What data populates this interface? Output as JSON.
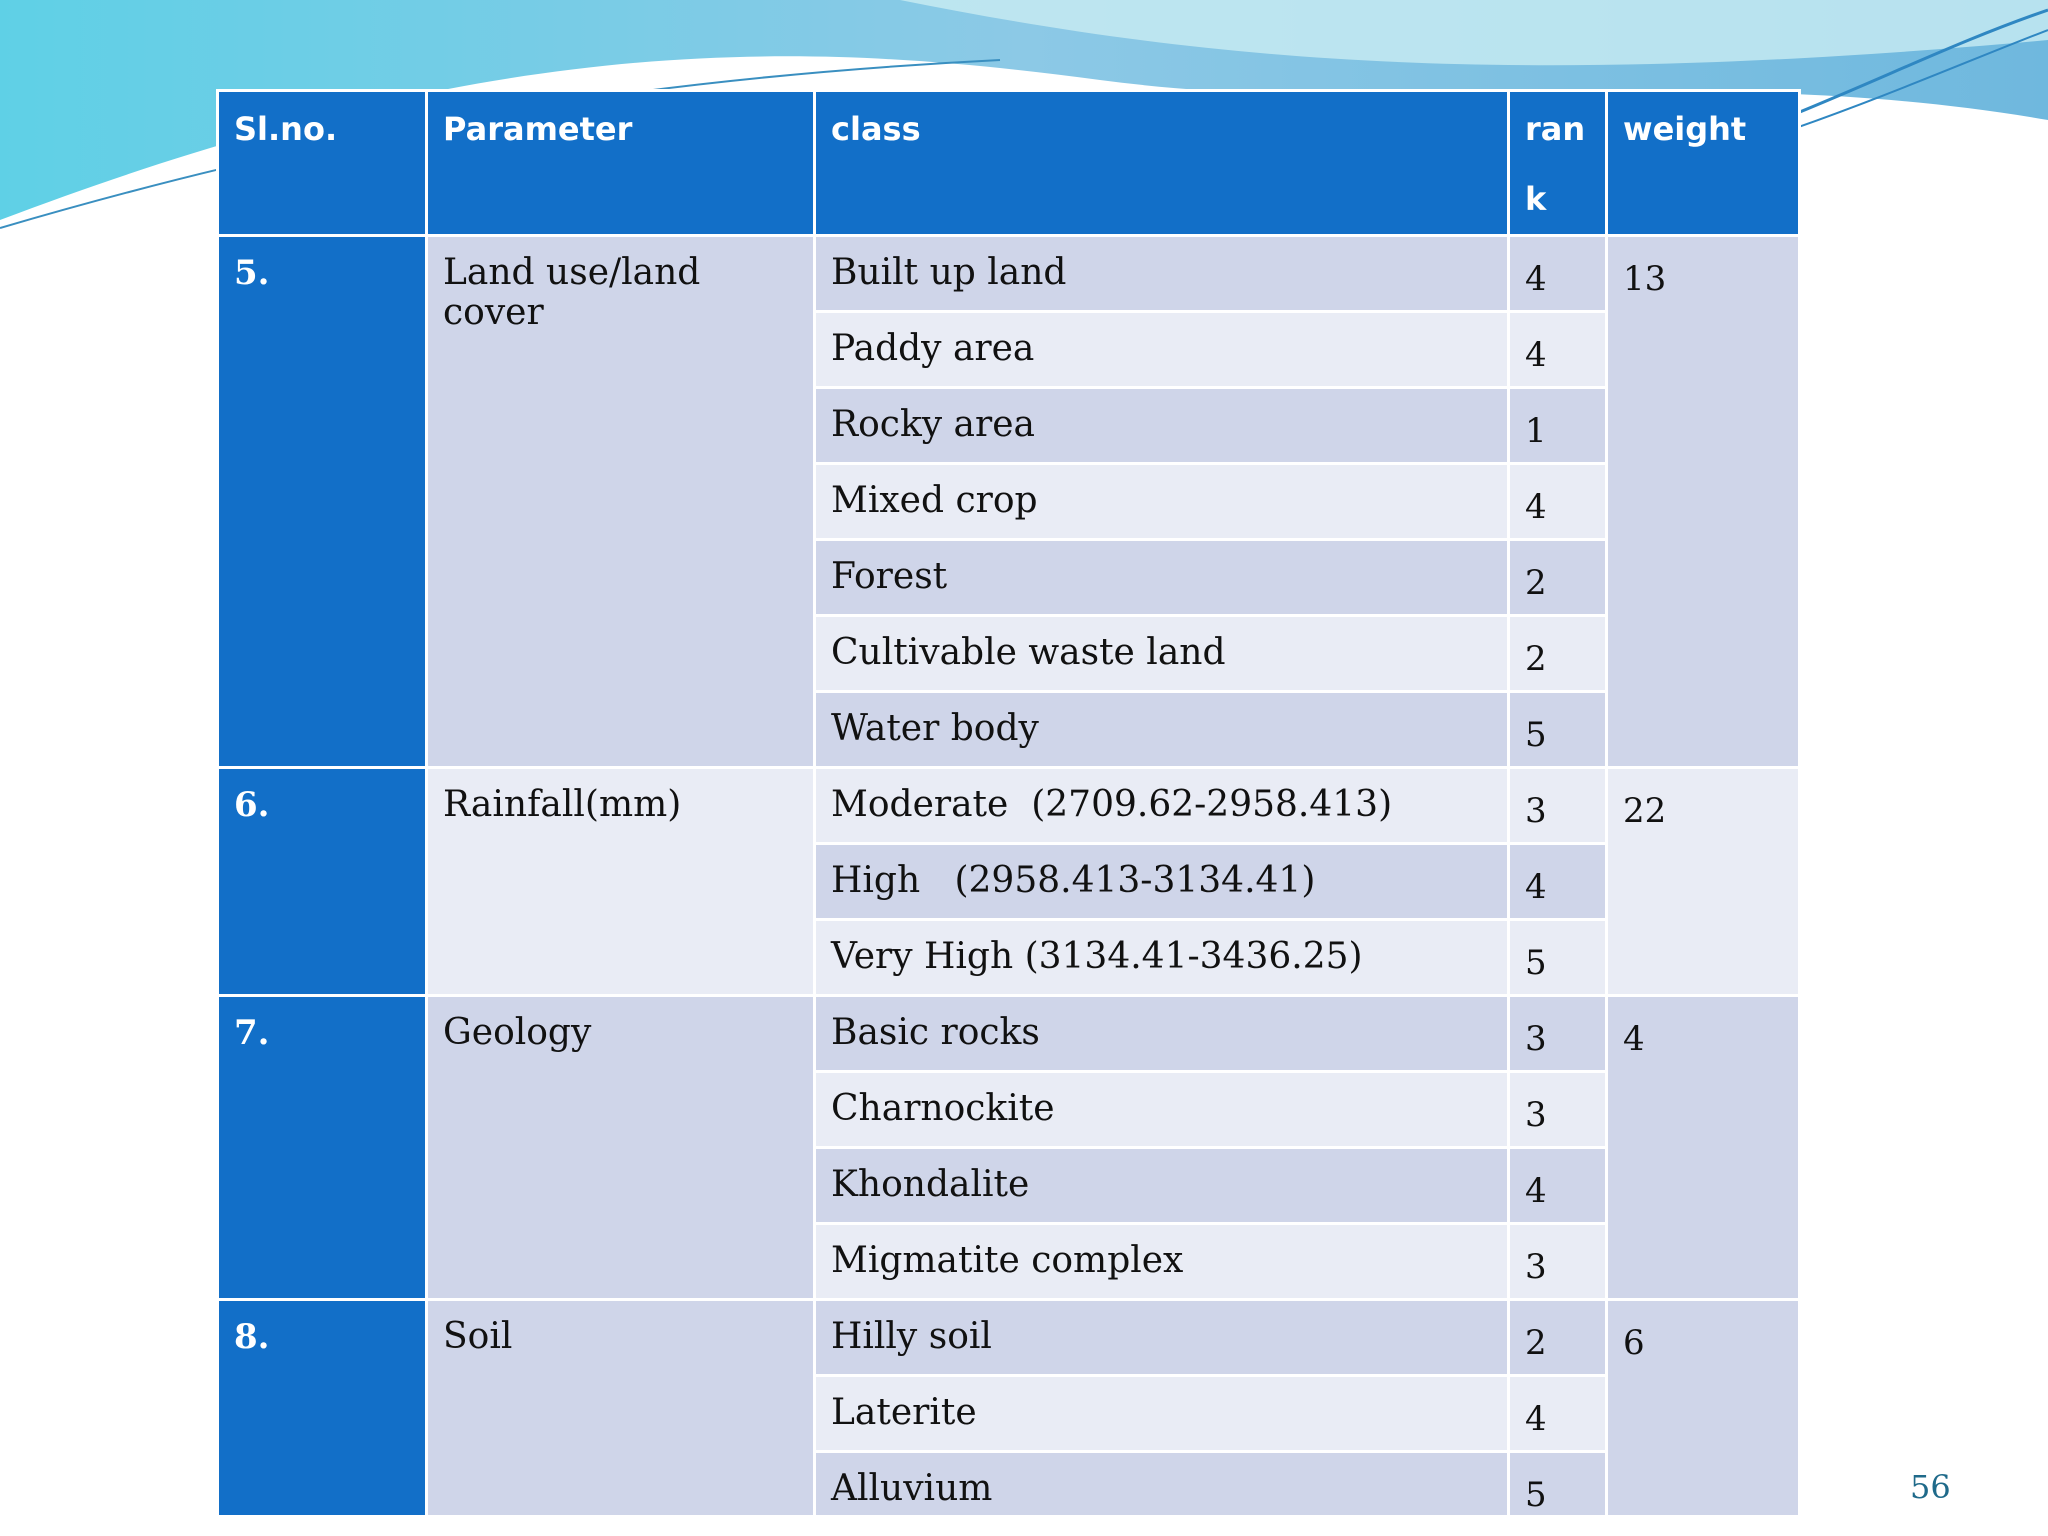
{
  "table": {
    "headers": {
      "slno": "Sl.no.",
      "parameter": "Parameter",
      "class": "class",
      "rank": "rank",
      "weight": "weight"
    },
    "groups": [
      {
        "slno": "5.",
        "parameter": "Land use/land cover",
        "weight": "13",
        "rows": [
          {
            "class": "Built up land",
            "rank": "4"
          },
          {
            "class": "Paddy area",
            "rank": "4"
          },
          {
            "class": "Rocky area",
            "rank": "1"
          },
          {
            "class": "Mixed crop",
            "rank": "4"
          },
          {
            "class": "Forest",
            "rank": "2"
          },
          {
            "class": "Cultivable waste land",
            "rank": "2"
          },
          {
            "class": "Water body",
            "rank": "5"
          }
        ]
      },
      {
        "slno": "6.",
        "parameter": "Rainfall(mm)",
        "weight": "22",
        "rows": [
          {
            "class": "Moderate  (2709.62-2958.413)",
            "rank": "3"
          },
          {
            "class": "High   (2958.413-3134.41)",
            "rank": "4"
          },
          {
            "class": "Very High (3134.41-3436.25)",
            "rank": "5"
          }
        ]
      },
      {
        "slno": "7.",
        "parameter": "Geology",
        "weight": "4",
        "rows": [
          {
            "class": "Basic rocks",
            "rank": "3"
          },
          {
            "class": "Charnockite",
            "rank": "3"
          },
          {
            "class": "Khondalite",
            "rank": "4"
          },
          {
            "class": "Migmatite complex",
            "rank": "3"
          }
        ]
      },
      {
        "slno": "8.",
        "parameter": "Soil",
        "weight": "6",
        "rows": [
          {
            "class": "Hilly soil",
            "rank": "2"
          },
          {
            "class": "Laterite",
            "rank": "4"
          },
          {
            "class": "Alluvium",
            "rank": "5"
          }
        ]
      }
    ]
  },
  "page_number": "56",
  "colors": {
    "header_blue": "#126fc8",
    "row_dark": "#cfd5e9",
    "row_light": "#e9ecf5",
    "wave": "#7ec8e3"
  }
}
